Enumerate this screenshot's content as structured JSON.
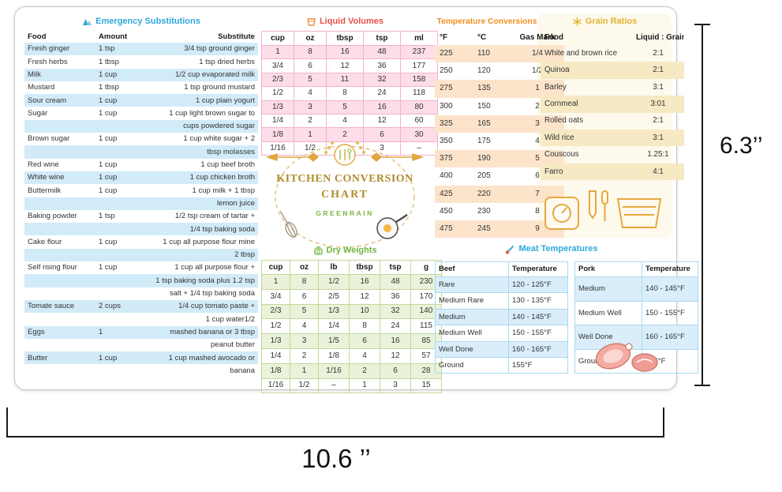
{
  "annotations": {
    "height": "6.3’’",
    "width": "10.6 ’’"
  },
  "logo": {
    "title_line1": "KITCHEN CONVERSION",
    "title_line2": "CHART",
    "brand": "GREENRAIN"
  },
  "sections": {
    "emergency": {
      "accent": "#2fa8dc"
    },
    "liquid": {
      "accent": "#e8504a"
    },
    "temperature": {
      "accent": "#f0901f"
    },
    "grain": {
      "accent": "#e0b52f"
    },
    "dry": {
      "accent": "#6fb43f"
    },
    "meat": {
      "accent": "#2fa8dc"
    }
  },
  "chart_data": [
    {
      "id": "emergency_substitutions",
      "type": "table",
      "title": "Emergency Substitutions",
      "columns": [
        "Food",
        "Amount",
        "Substitute"
      ],
      "rows": [
        [
          "Fresh ginger",
          "1 tsp",
          "3/4 tsp ground ginger"
        ],
        [
          "Fresh herbs",
          "1 tbsp",
          "1 tsp dried herbs"
        ],
        [
          "Milk",
          "1 cup",
          "1/2 cup evaporated milk"
        ],
        [
          "Mustard",
          "1 tbsp",
          "1 tsp ground mustard"
        ],
        [
          "Sour cream",
          "1 cup",
          "1 cup plain yogurt"
        ],
        [
          "Sugar",
          "1 cup",
          "1 cup light brown sugar to"
        ],
        [
          "",
          "",
          "cups powdered sugar"
        ],
        [
          "Brown sugar",
          "1 cup",
          "1 cup white sugar + 2"
        ],
        [
          "",
          "",
          "tbsp molasses"
        ],
        [
          "Red wine",
          "1 cup",
          "1 cup beef broth"
        ],
        [
          "White wine",
          "1 cup",
          "1 cup chicken broth"
        ],
        [
          "Buttermilk",
          "1 cup",
          "1 cup milk + 1 tbsp"
        ],
        [
          "",
          "",
          "lemon juice"
        ],
        [
          "Baking powder",
          "1 tsp",
          "1/2 tsp cream of tartar +"
        ],
        [
          "",
          "",
          "1/4 tsp baking soda"
        ],
        [
          "Cake flour",
          "1 cup",
          "1 cup all purpose flour mine"
        ],
        [
          "",
          "",
          "2 tbsp"
        ],
        [
          "Self rising flour",
          "1 cup",
          "1 cup all purpose flour +"
        ],
        [
          "",
          "",
          "1 tsp baking soda plus 1.2 tsp"
        ],
        [
          "",
          "",
          "salt + 1/4 tsp baking soda"
        ],
        [
          "Tomate sauce",
          "2 cups",
          "1/4 cup tomato paste +"
        ],
        [
          "",
          "",
          "1 cup water1/2"
        ],
        [
          "Eggs",
          "1",
          "mashed banana or 3 tbsp"
        ],
        [
          "",
          "",
          "peanut butter"
        ],
        [
          "Butter",
          "1 cup",
          "1 cup mashed avocado or"
        ],
        [
          "",
          "",
          "banana"
        ]
      ]
    },
    {
      "id": "liquid_volumes",
      "type": "table",
      "title": "Liquid Volumes",
      "columns": [
        "cup",
        "oz",
        "tbsp",
        "tsp",
        "ml"
      ],
      "rows": [
        [
          "1",
          "8",
          "16",
          "48",
          "237"
        ],
        [
          "3/4",
          "6",
          "12",
          "36",
          "177"
        ],
        [
          "2/3",
          "5",
          "11",
          "32",
          "158"
        ],
        [
          "1/2",
          "4",
          "8",
          "24",
          "118"
        ],
        [
          "1/3",
          "3",
          "5",
          "16",
          "80"
        ],
        [
          "1/4",
          "2",
          "4",
          "12",
          "60"
        ],
        [
          "1/8",
          "1",
          "2",
          "6",
          "30"
        ],
        [
          "1/16",
          "1/2",
          "1",
          "3",
          "–"
        ]
      ]
    },
    {
      "id": "temperature_conversions",
      "type": "table",
      "title": "Temperature Conversions",
      "columns": [
        "°F",
        "°C",
        "Gas Mark"
      ],
      "rows": [
        [
          "225",
          "110",
          "1/4"
        ],
        [
          "250",
          "120",
          "1/2"
        ],
        [
          "275",
          "135",
          "1"
        ],
        [
          "300",
          "150",
          "2"
        ],
        [
          "325",
          "165",
          "3"
        ],
        [
          "350",
          "175",
          "4"
        ],
        [
          "375",
          "190",
          "5"
        ],
        [
          "400",
          "205",
          "6"
        ],
        [
          "425",
          "220",
          "7"
        ],
        [
          "450",
          "230",
          "8"
        ],
        [
          "475",
          "245",
          "9"
        ]
      ]
    },
    {
      "id": "grain_ratios",
      "type": "table",
      "title": "Grain Ratios",
      "columns": [
        "Food",
        "Liquid : Grain"
      ],
      "rows": [
        [
          "White and brown rice",
          "2:1"
        ],
        [
          "Quinoa",
          "2:1"
        ],
        [
          "Barley",
          "3:1"
        ],
        [
          "Cornmeal",
          "3:01"
        ],
        [
          "Rolled oats",
          "2:1"
        ],
        [
          "Wild rice",
          "3:1"
        ],
        [
          "Couscous",
          "1.25:1"
        ],
        [
          "Farro",
          "4:1"
        ]
      ]
    },
    {
      "id": "dry_weights",
      "type": "table",
      "title": "Dry Weights",
      "columns": [
        "cup",
        "oz",
        "lb",
        "tbsp",
        "tsp",
        "g"
      ],
      "rows": [
        [
          "1",
          "8",
          "1/2",
          "16",
          "48",
          "230"
        ],
        [
          "3/4",
          "6",
          "2/5",
          "12",
          "36",
          "170"
        ],
        [
          "2/3",
          "5",
          "1/3",
          "10",
          "32",
          "140"
        ],
        [
          "1/2",
          "4",
          "1/4",
          "8",
          "24",
          "115"
        ],
        [
          "1/3",
          "3",
          "1/5",
          "6",
          "16",
          "85"
        ],
        [
          "1/4",
          "2",
          "1/8",
          "4",
          "12",
          "57"
        ],
        [
          "1/8",
          "1",
          "1/16",
          "2",
          "6",
          "28"
        ],
        [
          "1/16",
          "1/2",
          "–",
          "1",
          "3",
          "15"
        ]
      ]
    },
    {
      "id": "beef_temperatures",
      "type": "table",
      "title": "Meat Temperatures",
      "columns": [
        "Beef",
        "Temperature"
      ],
      "rows": [
        [
          "Rare",
          "120 - 125°F"
        ],
        [
          "Medium Rare",
          "130 - 135°F"
        ],
        [
          "Medium",
          "140 - 145°F"
        ],
        [
          "Medium Well",
          "150 - 155°F"
        ],
        [
          "Well Done",
          "160 - 165°F"
        ],
        [
          "Ground",
          "155°F"
        ]
      ]
    },
    {
      "id": "pork_temperatures",
      "type": "table",
      "title": "Pork",
      "columns": [
        "Pork",
        "Temperature"
      ],
      "rows": [
        [
          "Medium",
          "140 - 145°F"
        ],
        [
          "Medium Well",
          "150 - 155°F"
        ],
        [
          "Well Done",
          "160 - 165°F"
        ],
        [
          "Ground",
          "155°F"
        ]
      ]
    }
  ]
}
